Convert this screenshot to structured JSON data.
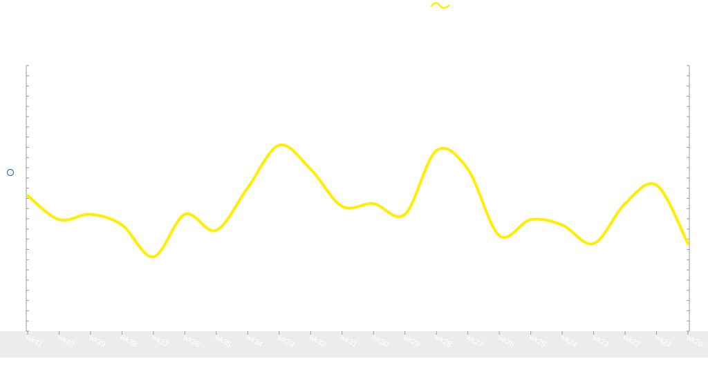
{
  "colors": {
    "series": "#ffee00",
    "axis": "#9a9a9a",
    "band": "#ececec",
    "tick_text": "#ffffff",
    "handle": "#2f6fb0"
  },
  "legend": {
    "icon": "wave-line-icon",
    "placement": "top-center"
  },
  "left_handle": {
    "icon": "circle-handle-icon"
  },
  "chart_data": {
    "type": "line",
    "title": "",
    "xlabel": "",
    "ylabel": "",
    "grid": false,
    "ylim": [
      0,
      100
    ],
    "categories": [
      "wk41",
      "wk40",
      "wk39",
      "wk38",
      "wk37",
      "wk36",
      "wk35",
      "wk34",
      "wk33",
      "wk32",
      "wk31",
      "wk30",
      "wk29",
      "wk28",
      "wk27",
      "wk26",
      "wk25",
      "wk24",
      "wk23",
      "wk22",
      "wk21",
      "wk20"
    ],
    "series": [
      {
        "values": [
          51,
          42,
          44,
          40,
          28,
          44,
          38,
          54,
          70,
          61,
          47,
          48,
          44,
          68,
          61,
          36,
          42,
          40,
          33,
          48,
          55,
          33
        ]
      }
    ]
  }
}
